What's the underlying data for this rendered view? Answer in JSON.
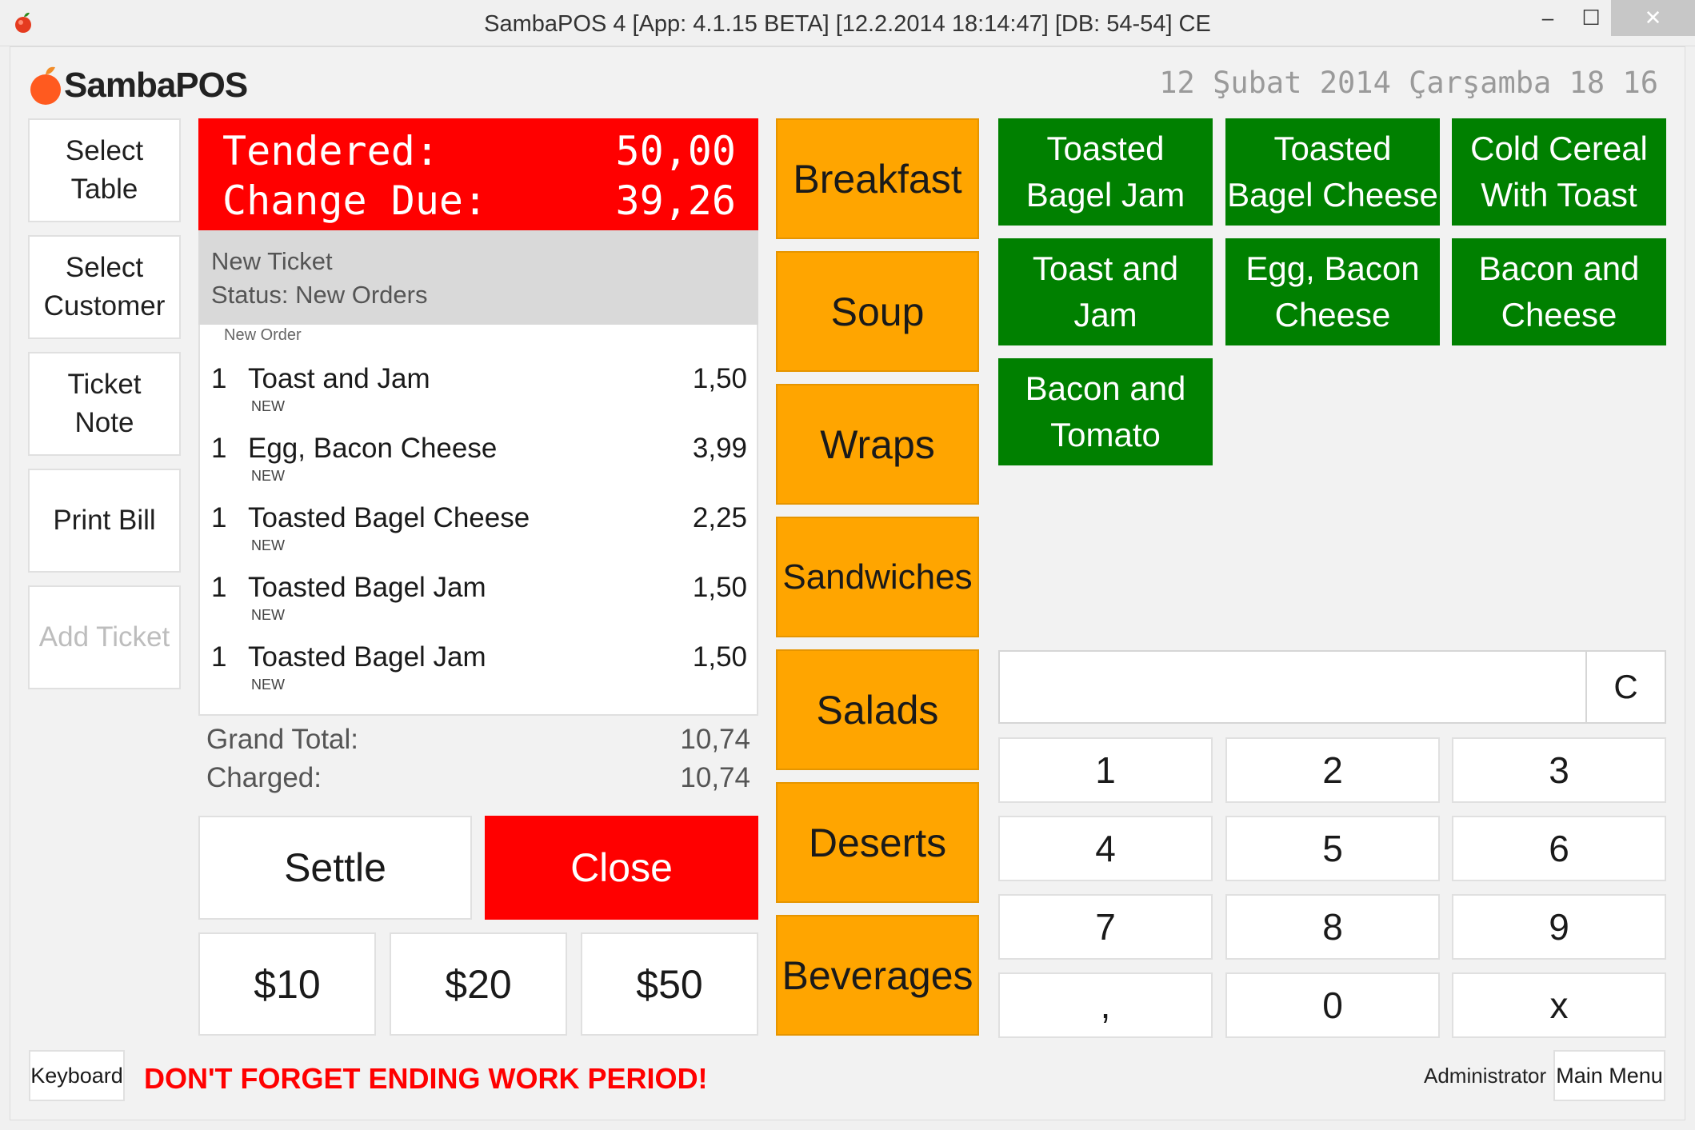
{
  "window": {
    "title": "SambaPOS 4 [App: 4.1.15 BETA] [12.2.2014 18:14:47] [DB: 54-54] CE",
    "minimize_glyph": "–",
    "maximize_glyph": "☐",
    "close_glyph": "✕"
  },
  "header": {
    "logo_text": "SambaPOS",
    "date_time": "12 Şubat 2014 Çarşamba 18 16"
  },
  "commands": [
    {
      "label": "Select\nTable"
    },
    {
      "label": "Select\nCustomer"
    },
    {
      "label": "Ticket\nNote"
    },
    {
      "label": "Print Bill"
    },
    {
      "label": "Add Ticket",
      "disabled": true
    }
  ],
  "tender": {
    "tendered_label": "Tendered:",
    "tendered_value": "50,00",
    "change_label": "Change Due:",
    "change_value": "39,26"
  },
  "ticket": {
    "title": "New Ticket",
    "status": "Status: New Orders",
    "order_caption": "New Order",
    "orders": [
      {
        "qty": "1",
        "name": "Toast and Jam",
        "price": "1,50",
        "tag": "NEW"
      },
      {
        "qty": "1",
        "name": "Egg, Bacon Cheese",
        "price": "3,99",
        "tag": "NEW"
      },
      {
        "qty": "1",
        "name": "Toasted Bagel Cheese",
        "price": "2,25",
        "tag": "NEW"
      },
      {
        "qty": "1",
        "name": "Toasted Bagel Jam",
        "price": "1,50",
        "tag": "NEW"
      },
      {
        "qty": "1",
        "name": "Toasted Bagel Jam",
        "price": "1,50",
        "tag": "NEW"
      }
    ],
    "grand_total_label": "Grand Total:",
    "grand_total_value": "10,74",
    "charged_label": "Charged:",
    "charged_value": "10,74"
  },
  "actions": {
    "settle": "Settle",
    "close": "Close",
    "cash": [
      "$10",
      "$20",
      "$50"
    ]
  },
  "categories": [
    "Breakfast",
    "Soup",
    "Wraps",
    "Sandwiches",
    "Salads",
    "Deserts",
    "Beverages"
  ],
  "menu_items": [
    "Toasted\nBagel Jam",
    "Toasted\nBagel Cheese",
    "Cold Cereal\nWith Toast",
    "Toast and\nJam",
    "Egg, Bacon\nCheese",
    "Bacon and\nCheese",
    "Bacon and\nTomato"
  ],
  "numpad": {
    "display_value": "",
    "clear": "C",
    "keys": [
      "1",
      "2",
      "3",
      "4",
      "5",
      "6",
      "7",
      "8",
      "9",
      ",",
      "0",
      "x"
    ]
  },
  "footer": {
    "keyboard": "Keyboard",
    "reminder": "DON'T FORGET ENDING WORK PERIOD!",
    "user": "Administrator",
    "main_menu": "Main Menu"
  },
  "colors": {
    "tender_bg": "#ff0000",
    "close_bg": "#ff0000",
    "category_bg": "#ffa500",
    "item_bg": "#008000",
    "reminder_text": "#ff0000"
  }
}
